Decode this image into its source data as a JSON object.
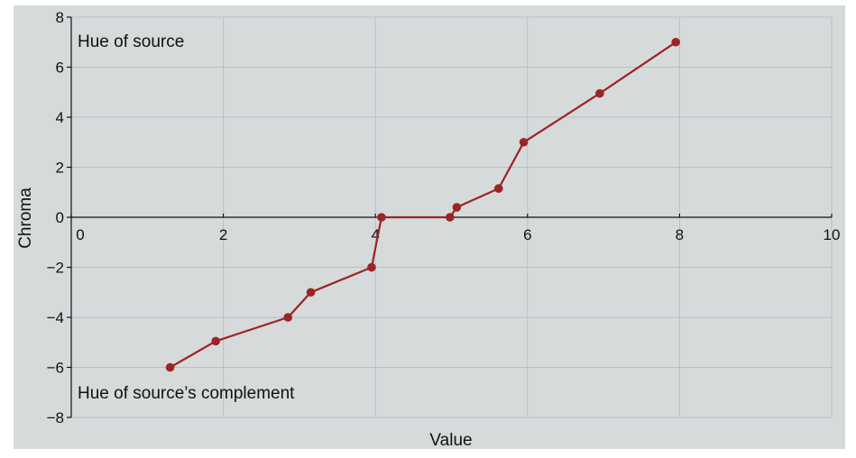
{
  "chart_data": {
    "type": "line",
    "title": "",
    "xlabel": "Value",
    "ylabel": "Chroma",
    "xlim": [
      0,
      10
    ],
    "ylim": [
      -8,
      8
    ],
    "x_ticks": [
      0,
      2,
      4,
      6,
      8,
      10
    ],
    "y_ticks": [
      8,
      6,
      4,
      2,
      0,
      -2,
      -4,
      -6,
      -8
    ],
    "x_tick_labels": [
      "0",
      "2",
      "4",
      "6",
      "8",
      "10"
    ],
    "y_tick_labels": [
      "8",
      "6",
      "4",
      "2",
      "0",
      "−2",
      "−4",
      "−6",
      "−8"
    ],
    "grid": true,
    "series": [
      {
        "color": "#9b2424",
        "points": [
          {
            "x": 1.3,
            "y": -6
          },
          {
            "x": 1.9,
            "y": -4.95
          },
          {
            "x": 2.85,
            "y": -4
          },
          {
            "x": 3.15,
            "y": -3
          },
          {
            "x": 3.95,
            "y": -2
          },
          {
            "x": 4.08,
            "y": 0
          },
          {
            "x": 4.98,
            "y": 0
          },
          {
            "x": 5.07,
            "y": 0.4
          },
          {
            "x": 5.62,
            "y": 1.15
          },
          {
            "x": 5.95,
            "y": 3
          },
          {
            "x": 6.95,
            "y": 4.95
          },
          {
            "x": 7.95,
            "y": 7
          }
        ]
      }
    ],
    "annotations": [
      {
        "text": "Hue of source",
        "position": "top-left"
      },
      {
        "text": "Hue of source’s complement",
        "position": "bottom-left"
      }
    ]
  }
}
